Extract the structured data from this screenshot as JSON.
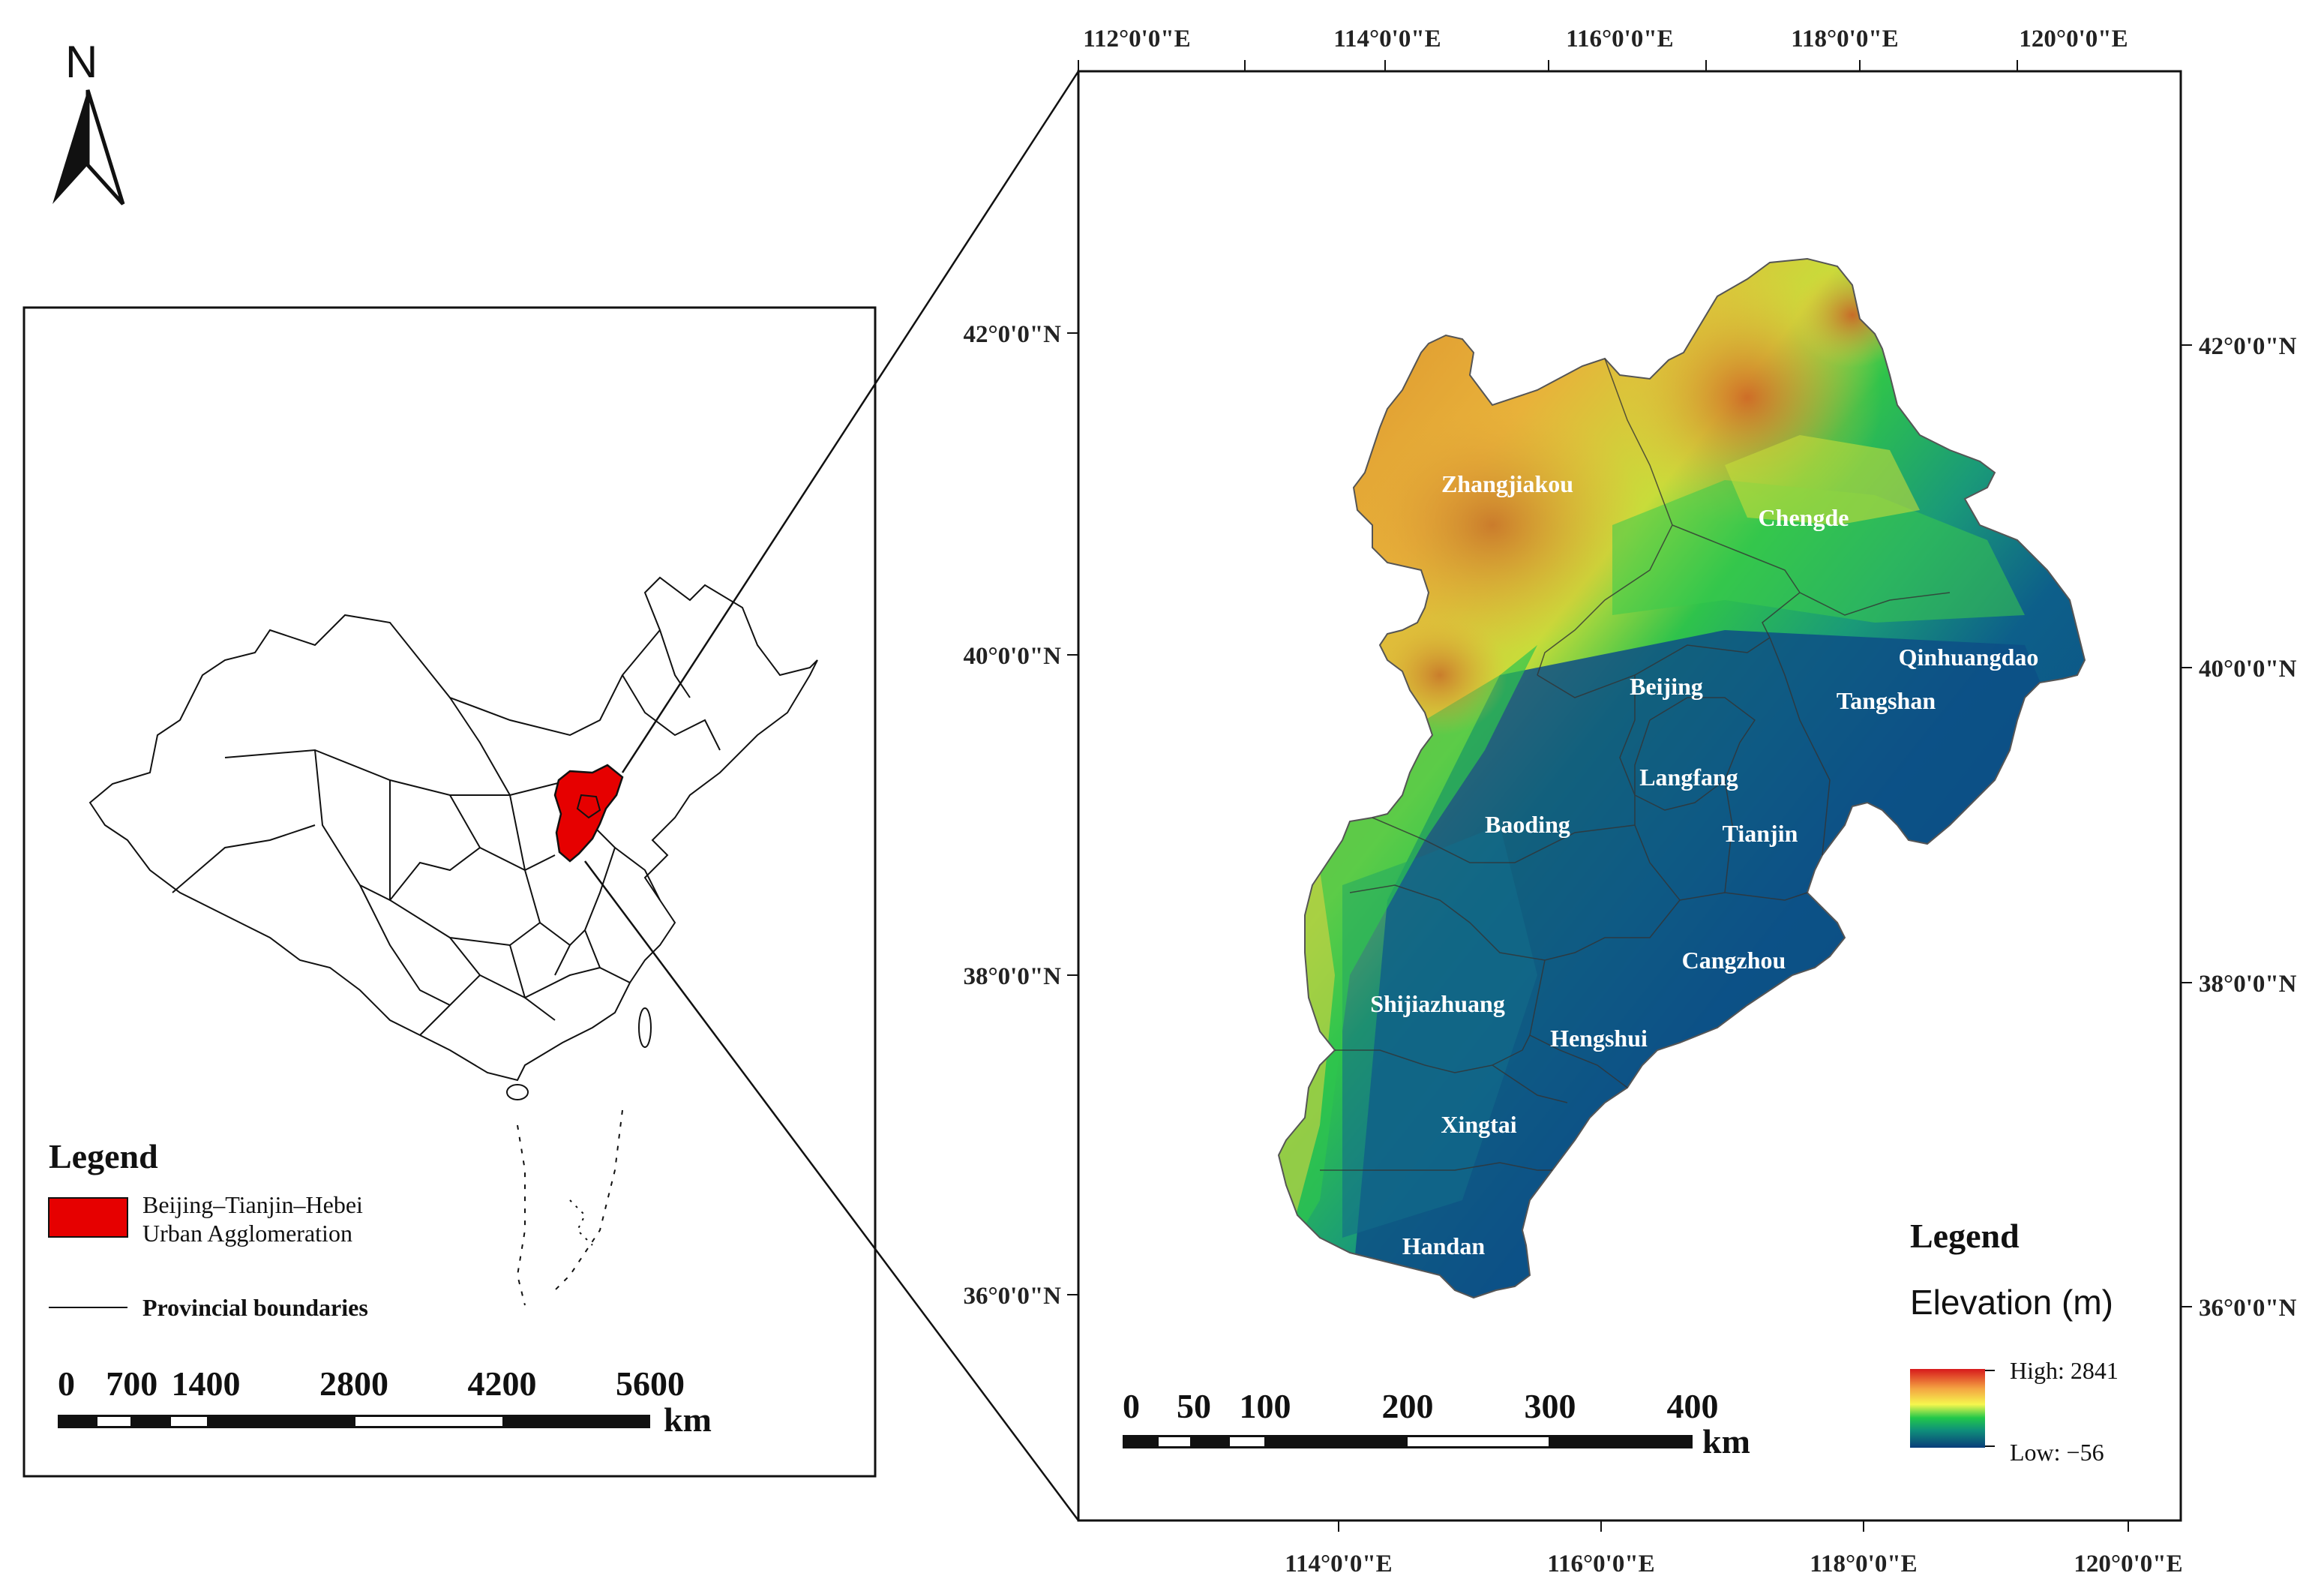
{
  "north_arrow": {
    "label": "N"
  },
  "inset": {
    "legend_title": "Legend",
    "legend_items": [
      {
        "label_line1": "Beijing–Tianjin–Hebei",
        "label_line2": "Urban Agglomeration",
        "color": "#e60000"
      },
      {
        "label": "Provincial boundaries"
      }
    ],
    "scale_labels": [
      "0",
      "700",
      "1400",
      "2800",
      "4200",
      "5600"
    ],
    "scale_unit": "km"
  },
  "main_map": {
    "lon_labels_top": [
      "112°0'0\"E",
      "114°0'0\"E",
      "116°0'0\"E",
      "118°0'0\"E",
      "120°0'0\"E"
    ],
    "lon_labels_bottom": [
      "114°0'0\"E",
      "116°0'0\"E",
      "118°0'0\"E",
      "120°0'0\"E"
    ],
    "lat_labels_left": [
      "42°0'0\"N",
      "40°0'0\"N",
      "38°0'0\"N",
      "36°0'0\"N"
    ],
    "lat_labels_right": [
      "42°0'0\"N",
      "40°0'0\"N",
      "38°0'0\"N",
      "36°0'0\"N"
    ],
    "cities": [
      "Zhangjiakou",
      "Chengde",
      "Qinhuangdao",
      "Beijing",
      "Tangshan",
      "Langfang",
      "Tianjin",
      "Baoding",
      "Cangzhou",
      "Shijiazhuang",
      "Hengshui",
      "Xingtai",
      "Handan"
    ],
    "scale_labels": [
      "0",
      "50",
      "100",
      "200",
      "300",
      "400"
    ],
    "scale_unit": "km",
    "legend": {
      "title": "Legend",
      "subtitle": "Elevation (m)",
      "high_label": "High: 2841",
      "low_label": "Low: −56",
      "high_value": 2841,
      "low_value": -56,
      "ramp_colors": [
        "#d7191c",
        "#f4a442",
        "#f6f64e",
        "#22c84a",
        "#0f8f7a",
        "#0b4f86",
        "#0a3d7a"
      ]
    }
  }
}
